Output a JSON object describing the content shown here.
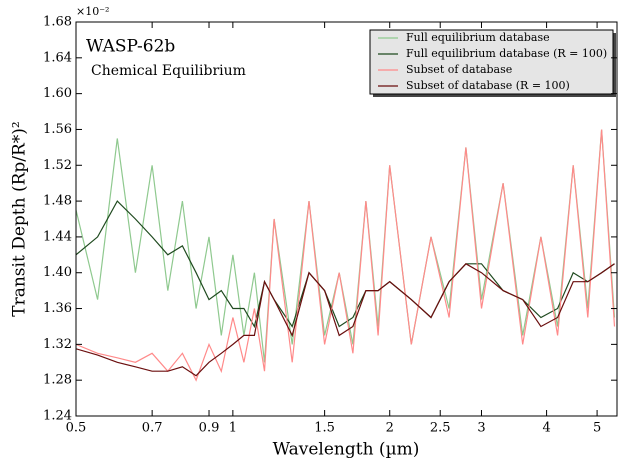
{
  "chart_data": {
    "type": "line",
    "title": "WASP-62b",
    "subtitle": "Chemical Equilibrium",
    "x_label": "Wavelength (µm)",
    "y_label": "Transit Depth (Rp/R*)²",
    "y_offset_label": "×10⁻²",
    "x_scale": "log",
    "legend": "upper right",
    "x": [
      0.5,
      0.55,
      0.6,
      0.65,
      0.7,
      0.75,
      0.8,
      0.85,
      0.9,
      0.95,
      1.0,
      1.05,
      1.1,
      1.15,
      1.2,
      1.3,
      1.4,
      1.5,
      1.6,
      1.7,
      1.8,
      1.9,
      2.0,
      2.2,
      2.4,
      2.6,
      2.8,
      3.0,
      3.3,
      3.6,
      3.9,
      4.2,
      4.5,
      4.8,
      5.1,
      5.4
    ],
    "series": [
      {
        "name": "Full equilibrium database",
        "color": "#8fc98f",
        "width": 1.2,
        "values": [
          1.47,
          1.37,
          1.55,
          1.4,
          1.52,
          1.38,
          1.48,
          1.36,
          1.44,
          1.33,
          1.42,
          1.33,
          1.4,
          1.3,
          1.46,
          1.32,
          1.48,
          1.33,
          1.4,
          1.32,
          1.48,
          1.34,
          1.52,
          1.32,
          1.44,
          1.36,
          1.54,
          1.37,
          1.5,
          1.33,
          1.44,
          1.34,
          1.52,
          1.36,
          1.56,
          1.35
        ]
      },
      {
        "name": "Full equilibrium database (R = 100)",
        "color": "#1f4a1f",
        "width": 1.2,
        "values": [
          1.42,
          1.44,
          1.48,
          1.46,
          1.44,
          1.42,
          1.43,
          1.4,
          1.37,
          1.38,
          1.36,
          1.36,
          1.34,
          1.39,
          1.37,
          1.34,
          1.4,
          1.38,
          1.34,
          1.35,
          1.38,
          1.38,
          1.39,
          1.37,
          1.35,
          1.39,
          1.41,
          1.41,
          1.38,
          1.37,
          1.35,
          1.36,
          1.4,
          1.39,
          1.4,
          1.41
        ]
      },
      {
        "name": "Subset of database",
        "color": "#ff8a8a",
        "width": 1.2,
        "values": [
          1.32,
          1.31,
          1.305,
          1.3,
          1.31,
          1.29,
          1.31,
          1.28,
          1.32,
          1.29,
          1.35,
          1.3,
          1.36,
          1.29,
          1.46,
          1.3,
          1.48,
          1.32,
          1.4,
          1.31,
          1.48,
          1.33,
          1.52,
          1.32,
          1.44,
          1.35,
          1.54,
          1.36,
          1.5,
          1.32,
          1.44,
          1.33,
          1.52,
          1.35,
          1.56,
          1.34
        ]
      },
      {
        "name": "Subset of database (R = 100)",
        "color": "#6b0f0f",
        "width": 1.2,
        "values": [
          1.315,
          1.308,
          1.3,
          1.295,
          1.29,
          1.29,
          1.295,
          1.285,
          1.3,
          1.31,
          1.32,
          1.33,
          1.33,
          1.39,
          1.37,
          1.33,
          1.4,
          1.38,
          1.33,
          1.34,
          1.38,
          1.38,
          1.39,
          1.37,
          1.35,
          1.39,
          1.41,
          1.4,
          1.38,
          1.37,
          1.34,
          1.35,
          1.39,
          1.39,
          1.4,
          1.41
        ]
      }
    ],
    "xlim": [
      0.5,
      5.46
    ],
    "ylim": [
      1.24,
      1.68
    ],
    "xticks": [
      0.5,
      0.7,
      0.9,
      1,
      1.5,
      2,
      2.5,
      3,
      4,
      5
    ],
    "yticks": [
      1.24,
      1.28,
      1.32,
      1.36,
      {
        "value": 1.4,
        "label": "1.40"
      },
      1.44,
      1.48,
      1.52,
      1.56,
      {
        "value": 1.6,
        "label": "1.60"
      },
      1.64,
      1.68
    ]
  }
}
